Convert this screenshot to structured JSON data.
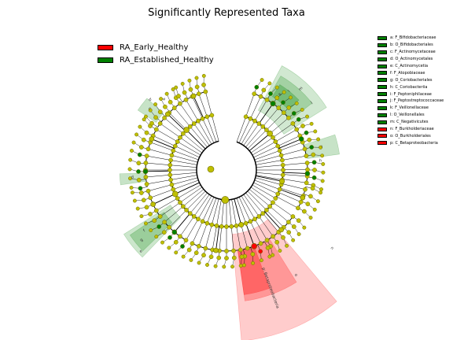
{
  "title": "Significantly Represented Taxa",
  "groups": [
    {
      "name": "RA_Early_Healthy",
      "color": "#ff0000"
    },
    {
      "name": "RA_Established_Healthy",
      "color": "#008000"
    }
  ],
  "taxa": [
    {
      "key": "a",
      "label": "a: F_Bifidobacteriaceae",
      "group": "RA_Established_Healthy"
    },
    {
      "key": "b",
      "label": "b: O_Bifidobacteriales",
      "group": "RA_Established_Healthy"
    },
    {
      "key": "c",
      "label": "c: F_Actinomycetaceae",
      "group": "RA_Established_Healthy"
    },
    {
      "key": "d",
      "label": "d: O_Actinomycetales",
      "group": "RA_Established_Healthy"
    },
    {
      "key": "e",
      "label": "e: C_Actinomycetia",
      "group": "RA_Established_Healthy"
    },
    {
      "key": "f",
      "label": "f: F_Atopobiaceae",
      "group": "RA_Established_Healthy"
    },
    {
      "key": "g",
      "label": "g: O_Coriobacteriales",
      "group": "RA_Established_Healthy"
    },
    {
      "key": "h",
      "label": "h: C_Coriobacteriia",
      "group": "RA_Established_Healthy"
    },
    {
      "key": "i",
      "label": "i: F_Peptoniphilaceae",
      "group": "RA_Established_Healthy"
    },
    {
      "key": "j",
      "label": "j: F_Peptostreptococcaceae",
      "group": "RA_Established_Healthy"
    },
    {
      "key": "k",
      "label": "k: F_Veillonellaceae",
      "group": "RA_Established_Healthy"
    },
    {
      "key": "l",
      "label": "l: O_Veillonellales",
      "group": "RA_Established_Healthy"
    },
    {
      "key": "m",
      "label": "m: C_Negativicutes",
      "group": "RA_Established_Healthy"
    },
    {
      "key": "n",
      "label": "n: F_Burkholderiaceae",
      "group": "RA_Early_Healthy"
    },
    {
      "key": "o",
      "label": "o: O_Burkholderiales",
      "group": "RA_Early_Healthy"
    },
    {
      "key": "p",
      "label": "p: C_Betaproteobacteria",
      "group": "RA_Early_Healthy"
    }
  ],
  "sector_labels": [
    {
      "text": "p: Betaproteobacteria",
      "group": "RA_Early_Healthy"
    },
    {
      "text": "o",
      "group": "RA_Early_Healthy"
    },
    {
      "text": "n",
      "group": "RA_Early_Healthy"
    },
    {
      "text": "m",
      "group": "RA_Established_Healthy"
    },
    {
      "text": "l",
      "group": "RA_Established_Healthy"
    },
    {
      "text": "k",
      "group": "RA_Established_Healthy"
    },
    {
      "text": "j",
      "group": "RA_Established_Healthy"
    },
    {
      "text": "i",
      "group": "RA_Established_Healthy"
    },
    {
      "text": "h",
      "group": "RA_Established_Healthy"
    },
    {
      "text": "g",
      "group": "RA_Established_Healthy"
    },
    {
      "text": "f",
      "group": "RA_Established_Healthy"
    },
    {
      "text": "e",
      "group": "RA_Established_Healthy"
    },
    {
      "text": "d",
      "group": "RA_Established_Healthy"
    },
    {
      "text": "c",
      "group": "RA_Established_Healthy"
    },
    {
      "text": "b",
      "group": "RA_Established_Healthy"
    },
    {
      "text": "a",
      "group": "RA_Established_Healthy"
    }
  ],
  "colors": {
    "node_default": "#bfbf00",
    "node_stroke": "#6b6b00",
    "sector_red": "#ff0000",
    "sector_green": "#008000",
    "edge": "#000000"
  }
}
